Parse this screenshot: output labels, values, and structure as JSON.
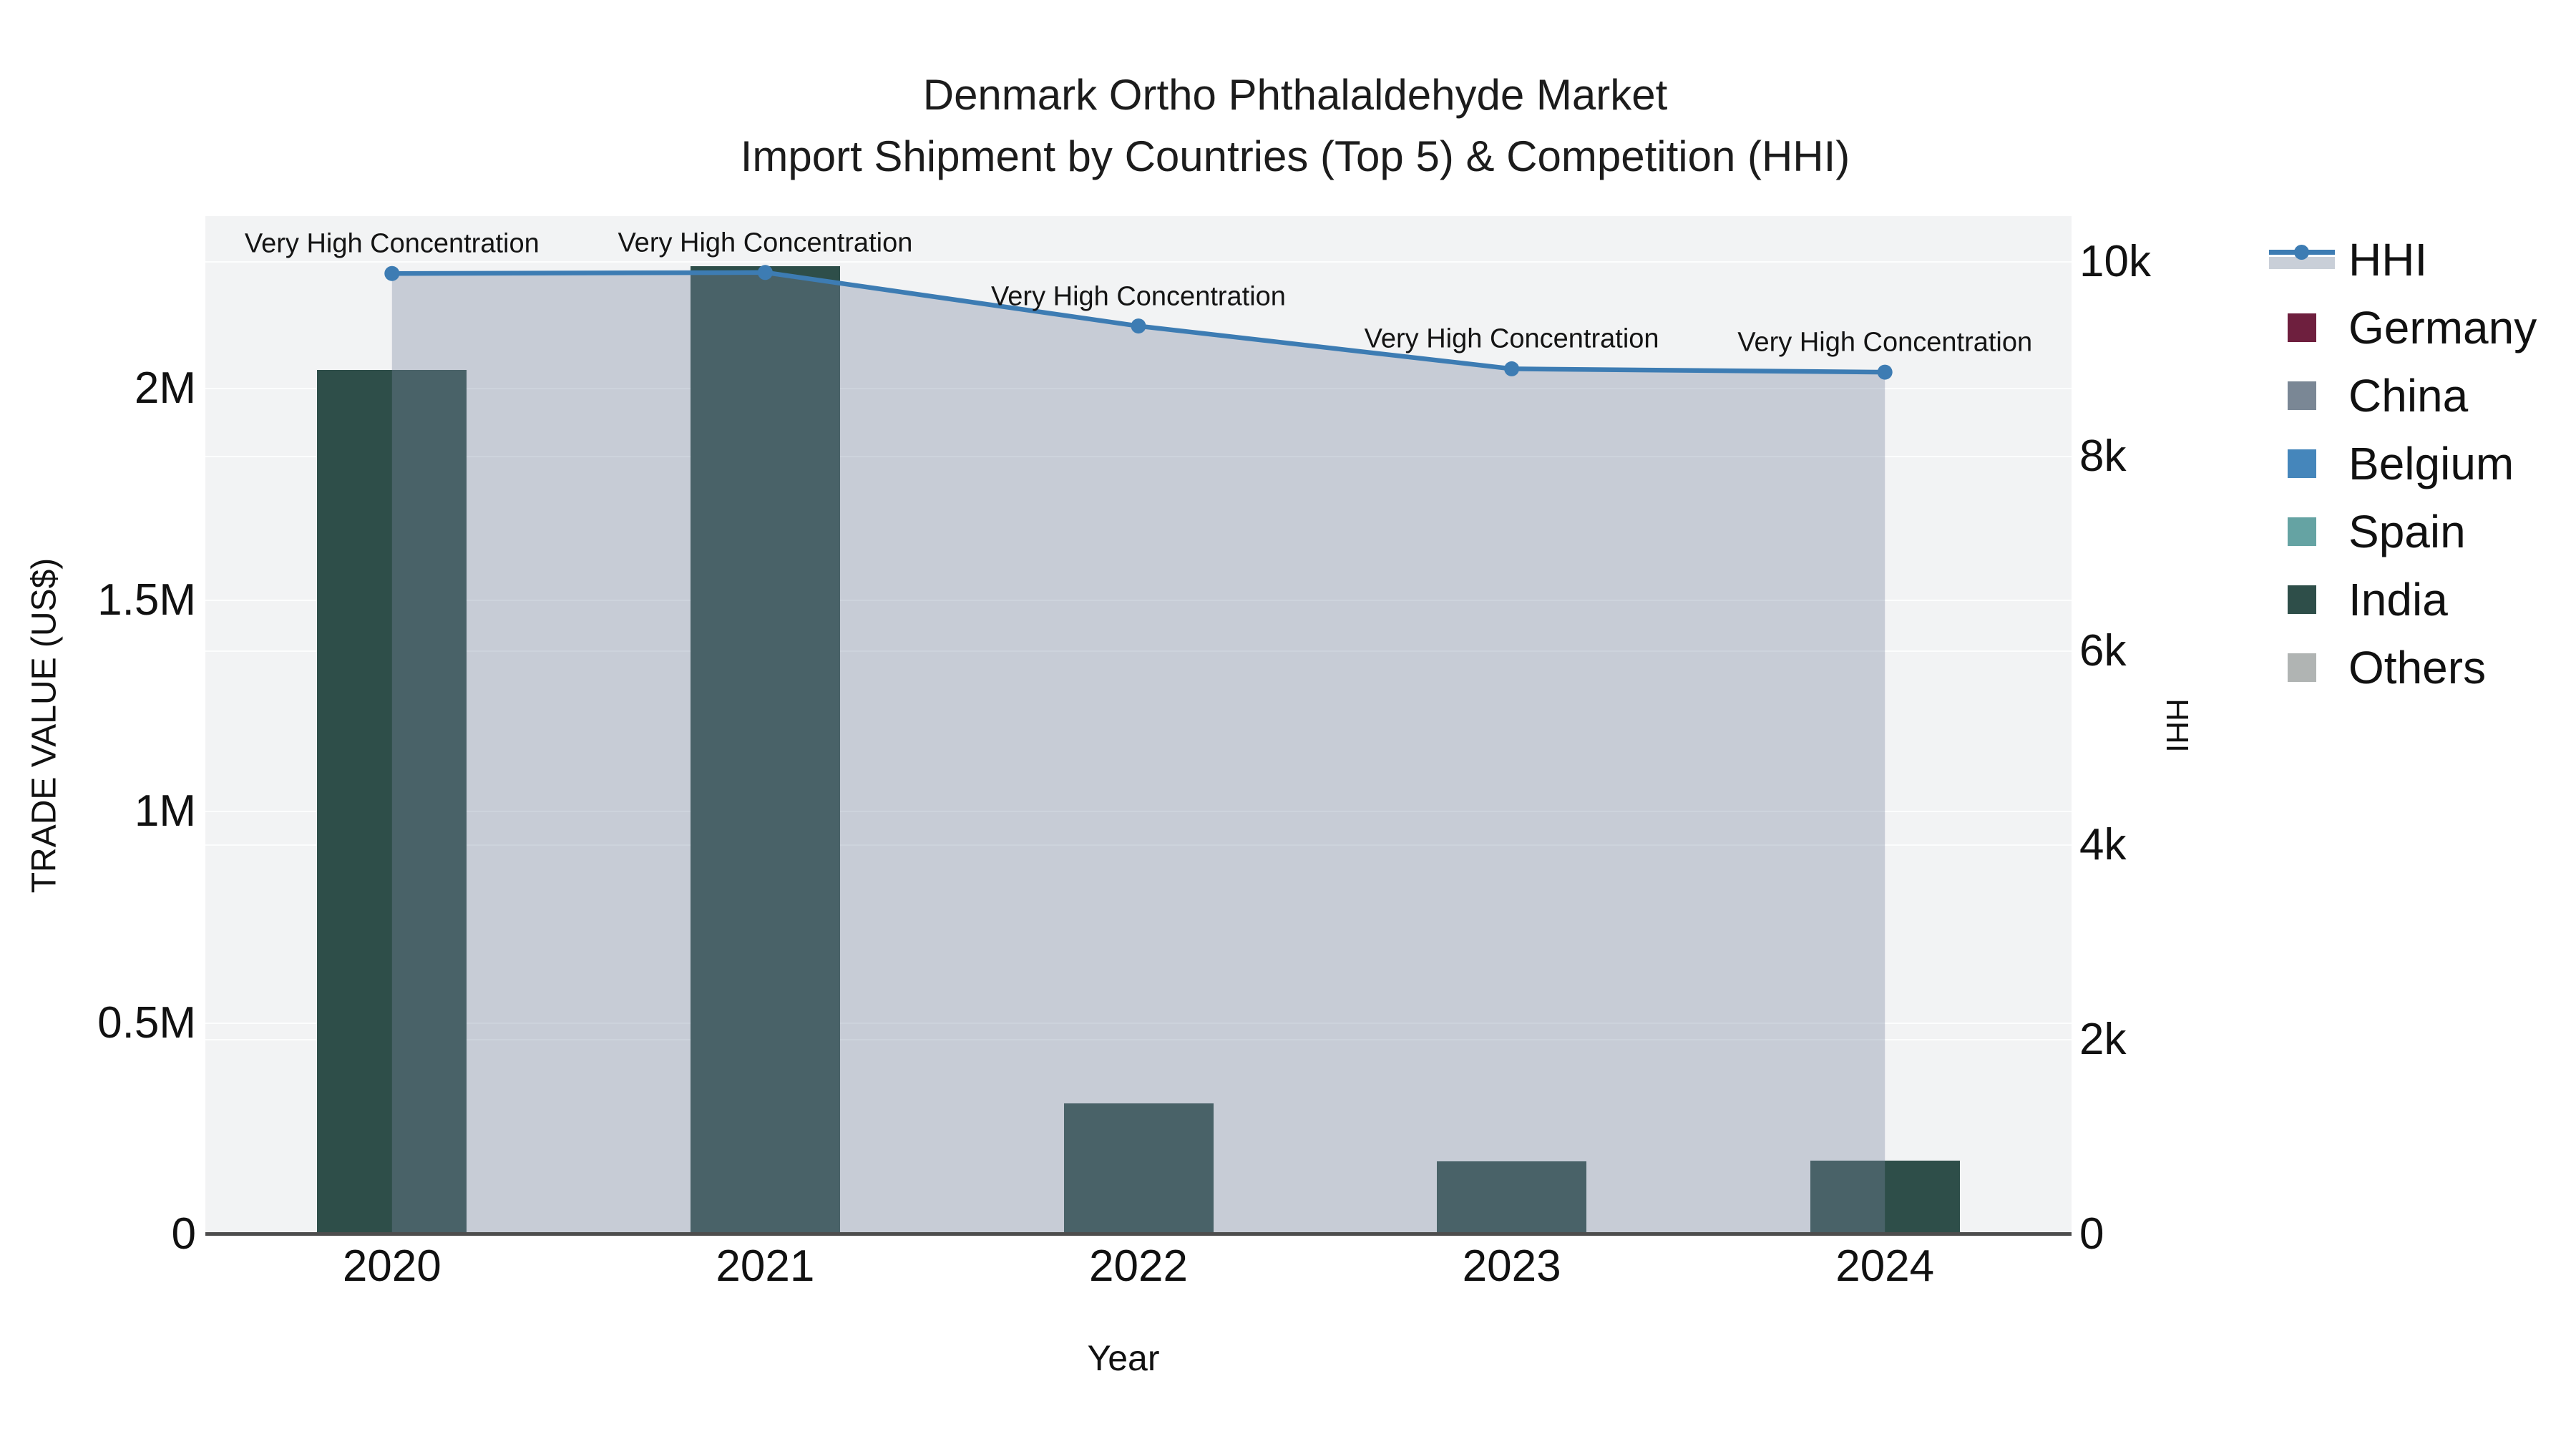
{
  "title": {
    "line1": "Denmark Ortho Phthalaldehyde Market",
    "line2": "Import Shipment by Countries (Top 5) & Competition (HHI)"
  },
  "axes": {
    "x": {
      "title": "Year",
      "tick_labels": [
        "2020",
        "2021",
        "2022",
        "2023",
        "2024"
      ]
    },
    "y_left": {
      "title": "TRADE VALUE (US$)",
      "ticks": [
        {
          "value": 0,
          "label": "0"
        },
        {
          "value": 500000,
          "label": "0.5M"
        },
        {
          "value": 1000000,
          "label": "1M"
        },
        {
          "value": 1500000,
          "label": "1.5M"
        },
        {
          "value": 2000000,
          "label": "2M"
        }
      ]
    },
    "y_right": {
      "title": "HHI",
      "ticks": [
        {
          "value": 0,
          "label": "0"
        },
        {
          "value": 2000,
          "label": "2k"
        },
        {
          "value": 4000,
          "label": "4k"
        },
        {
          "value": 6000,
          "label": "6k"
        },
        {
          "value": 8000,
          "label": "8k"
        },
        {
          "value": 10000,
          "label": "10k"
        }
      ]
    }
  },
  "legend": {
    "items": [
      {
        "label": "HHI",
        "type": "line",
        "color": "#3d7cb3",
        "band_color": "#c9cfd8"
      },
      {
        "label": "Germany",
        "type": "square",
        "color": "#6e1f3e"
      },
      {
        "label": "China",
        "type": "square",
        "color": "#7a8795"
      },
      {
        "label": "Belgium",
        "type": "square",
        "color": "#4586bb"
      },
      {
        "label": "Spain",
        "type": "square",
        "color": "#65a3a3"
      },
      {
        "label": "India",
        "type": "square",
        "color": "#2e4e49"
      },
      {
        "label": "Others",
        "type": "square",
        "color": "#b0b4b3"
      }
    ]
  },
  "chart_data": {
    "type": "bar",
    "subtype": "bar+line dual-axis combo",
    "title": "Denmark Ortho Phthalaldehyde Market — Import Shipment by Countries (Top 5) & Competition (HHI)",
    "categories": [
      "2020",
      "2021",
      "2022",
      "2023",
      "2024"
    ],
    "series": [
      {
        "name": "Germany",
        "kind": "bar",
        "axis": "left",
        "color": "#6e1f3e",
        "values": [
          0,
          0,
          0,
          0,
          0
        ]
      },
      {
        "name": "China",
        "kind": "bar",
        "axis": "left",
        "color": "#7a8795",
        "values": [
          0,
          0,
          0,
          0,
          0
        ]
      },
      {
        "name": "Belgium",
        "kind": "bar",
        "axis": "left",
        "color": "#4586bb",
        "values": [
          0,
          0,
          0,
          0,
          0
        ]
      },
      {
        "name": "Spain",
        "kind": "bar",
        "axis": "left",
        "color": "#65a3a3",
        "values": [
          0,
          0,
          0,
          0,
          0
        ]
      },
      {
        "name": "India",
        "kind": "bar",
        "axis": "left",
        "color": "#2e4e49",
        "values": [
          2045000,
          2290000,
          310000,
          172000,
          175000
        ]
      },
      {
        "name": "Others",
        "kind": "bar",
        "axis": "left",
        "color": "#b0b4b3",
        "values": [
          0,
          0,
          0,
          0,
          0
        ]
      },
      {
        "name": "HHI",
        "kind": "line",
        "axis": "right",
        "color": "#3d7cb3",
        "area_fill": "rgba(121,136,162,0.36)",
        "values": [
          9880,
          9890,
          9340,
          8900,
          8865
        ]
      }
    ],
    "point_annotations": [
      "Very High Concentration",
      "Very High Concentration",
      "Very High Concentration",
      "Very High Concentration",
      "Very High Concentration"
    ],
    "xlabel": "Year",
    "ylabel_left": "TRADE VALUE (US$)",
    "ylabel_right": "HHI",
    "ylim_left": [
      0,
      2408000
    ],
    "ylim_right": [
      0,
      10470
    ],
    "grid": true,
    "legend_position": "right"
  },
  "colors": {
    "figure_bg": "#ffffff",
    "plot_bg": "#f2f3f4",
    "gridline": "rgba(255,255,255,0.78)",
    "axis_line": "#4d4d4d",
    "text": "#111111"
  }
}
